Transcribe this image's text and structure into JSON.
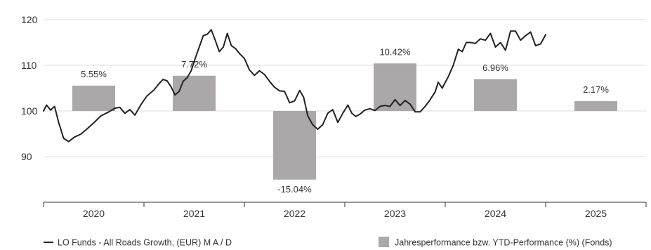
{
  "chart_data": {
    "type": "bar+line",
    "colors": {
      "line": "#222222",
      "bar": "#aaa8a8",
      "grid": "#dcdcdc",
      "axis": "#333333"
    },
    "grid": true,
    "legend_position": "bottom",
    "x_range": [
      2019.85,
      2025.85
    ],
    "y_range": [
      80,
      122
    ],
    "y_ticks": [
      90,
      100,
      110,
      120
    ],
    "y_tick_labels": [
      "90",
      "100",
      "110",
      "120"
    ],
    "x_ticks": [
      2019.85,
      2020.85,
      2021.85,
      2022.85,
      2023.85,
      2024.85,
      2025.85
    ],
    "categories": [
      "2020",
      "2021",
      "2022",
      "2023",
      "2024",
      "2025"
    ],
    "bar_series": {
      "name": "Jahresperformance bzw. YTD-Performance (%) (Fonds)",
      "values": [
        5.55,
        7.72,
        -15.04,
        10.42,
        6.96,
        2.17
      ],
      "labels": [
        "5.55%",
        "7.72%",
        "-15.04%",
        "10.42%",
        "6.96%",
        "2.17%"
      ]
    },
    "line_series": {
      "name": "LO Funds - All Roads Growth, (EUR) M A / D",
      "points": [
        [
          2019.85,
          100.0
        ],
        [
          2019.88,
          101.3
        ],
        [
          2019.92,
          100.2
        ],
        [
          2019.96,
          101.0
        ],
        [
          2020.0,
          97.5
        ],
        [
          2020.05,
          94.0
        ],
        [
          2020.1,
          93.3
        ],
        [
          2020.16,
          94.3
        ],
        [
          2020.22,
          94.9
        ],
        [
          2020.28,
          96.0
        ],
        [
          2020.35,
          97.4
        ],
        [
          2020.42,
          98.9
        ],
        [
          2020.5,
          99.8
        ],
        [
          2020.56,
          100.6
        ],
        [
          2020.61,
          100.8
        ],
        [
          2020.66,
          99.5
        ],
        [
          2020.71,
          100.3
        ],
        [
          2020.76,
          99.1
        ],
        [
          2020.82,
          101.4
        ],
        [
          2020.88,
          103.3
        ],
        [
          2020.95,
          104.6
        ],
        [
          2021.0,
          106.0
        ],
        [
          2021.04,
          106.9
        ],
        [
          2021.08,
          106.6
        ],
        [
          2021.12,
          105.3
        ],
        [
          2021.16,
          103.5
        ],
        [
          2021.2,
          104.3
        ],
        [
          2021.24,
          106.5
        ],
        [
          2021.28,
          107.3
        ],
        [
          2021.32,
          108.8
        ],
        [
          2021.36,
          111.5
        ],
        [
          2021.4,
          114.0
        ],
        [
          2021.44,
          116.5
        ],
        [
          2021.48,
          116.8
        ],
        [
          2021.52,
          117.8
        ],
        [
          2021.56,
          115.5
        ],
        [
          2021.6,
          113.0
        ],
        [
          2021.64,
          114.0
        ],
        [
          2021.68,
          117.0
        ],
        [
          2021.72,
          114.3
        ],
        [
          2021.76,
          113.7
        ],
        [
          2021.8,
          112.6
        ],
        [
          2021.85,
          111.5
        ],
        [
          2021.9,
          109.0
        ],
        [
          2021.95,
          107.8
        ],
        [
          2022.0,
          108.8
        ],
        [
          2022.05,
          108.0
        ],
        [
          2022.1,
          106.5
        ],
        [
          2022.15,
          105.2
        ],
        [
          2022.2,
          104.4
        ],
        [
          2022.25,
          104.3
        ],
        [
          2022.3,
          101.8
        ],
        [
          2022.35,
          102.2
        ],
        [
          2022.4,
          104.5
        ],
        [
          2022.44,
          103.0
        ],
        [
          2022.48,
          99.0
        ],
        [
          2022.53,
          97.0
        ],
        [
          2022.58,
          96.0
        ],
        [
          2022.63,
          97.0
        ],
        [
          2022.68,
          99.5
        ],
        [
          2022.73,
          100.3
        ],
        [
          2022.78,
          97.5
        ],
        [
          2022.83,
          99.5
        ],
        [
          2022.88,
          101.3
        ],
        [
          2022.92,
          99.5
        ],
        [
          2022.96,
          98.8
        ],
        [
          2023.0,
          99.3
        ],
        [
          2023.05,
          100.2
        ],
        [
          2023.1,
          100.5
        ],
        [
          2023.15,
          100.1
        ],
        [
          2023.2,
          101.0
        ],
        [
          2023.25,
          101.2
        ],
        [
          2023.3,
          101.0
        ],
        [
          2023.35,
          102.5
        ],
        [
          2023.4,
          101.2
        ],
        [
          2023.45,
          102.3
        ],
        [
          2023.5,
          101.5
        ],
        [
          2023.55,
          99.8
        ],
        [
          2023.6,
          99.8
        ],
        [
          2023.65,
          101.0
        ],
        [
          2023.7,
          102.5
        ],
        [
          2023.75,
          104.2
        ],
        [
          2023.78,
          106.3
        ],
        [
          2023.82,
          105.0
        ],
        [
          2023.88,
          107.5
        ],
        [
          2023.93,
          110.0
        ],
        [
          2023.98,
          113.5
        ],
        [
          2024.02,
          113.0
        ],
        [
          2024.06,
          115.0
        ],
        [
          2024.1,
          115.0
        ],
        [
          2024.15,
          114.8
        ],
        [
          2024.2,
          115.8
        ],
        [
          2024.25,
          115.5
        ],
        [
          2024.3,
          117.0
        ],
        [
          2024.35,
          114.0
        ],
        [
          2024.4,
          115.0
        ],
        [
          2024.45,
          113.3
        ],
        [
          2024.5,
          117.5
        ],
        [
          2024.55,
          117.5
        ],
        [
          2024.6,
          115.5
        ],
        [
          2024.65,
          116.5
        ],
        [
          2024.7,
          117.3
        ],
        [
          2024.75,
          114.3
        ],
        [
          2024.8,
          114.7
        ],
        [
          2024.85,
          116.7
        ]
      ]
    }
  }
}
